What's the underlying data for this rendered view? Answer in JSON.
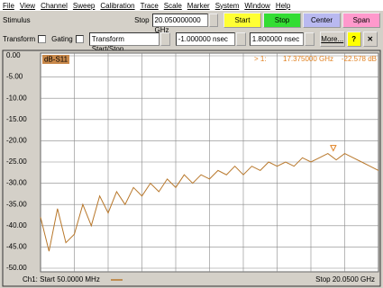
{
  "menu": [
    "File",
    "View",
    "Channel",
    "Sweep",
    "Calibration",
    "Trace",
    "Scale",
    "Marker",
    "System",
    "Window",
    "Help"
  ],
  "stimulus": {
    "label": "Stimulus",
    "stop_label": "Stop",
    "stop_value": "20.050000000 GHz",
    "buttons": [
      "Start",
      "Stop",
      "Center",
      "Span"
    ]
  },
  "transform": {
    "transform": "Transform",
    "gating": "Gating",
    "mode": "Transform Start/Stop",
    "start": "-1.000000 nsec",
    "stop": "1.800000 nsec",
    "more": "More..."
  },
  "plot": {
    "trace_label": "dB-S11",
    "marker": {
      "label": "> 1:",
      "x_label": "17.375000 GHz",
      "y_label": "-22.578 dB",
      "x": 17.375,
      "y": -22.578
    },
    "ylim": [
      -50,
      0
    ],
    "yticks": [
      {
        "value": 0,
        "label": "0.00"
      },
      {
        "value": -5,
        "label": "-5.00"
      },
      {
        "value": -10,
        "label": "-10.00"
      },
      {
        "value": -15,
        "label": "-15.00"
      },
      {
        "value": -20,
        "label": "-20.00"
      },
      {
        "value": -25,
        "label": "-25.00"
      },
      {
        "value": -30,
        "label": "-30.00"
      },
      {
        "value": -35,
        "label": "-35.00"
      },
      {
        "value": -40,
        "label": "-40.00"
      },
      {
        "value": -45,
        "label": "-45.00"
      },
      {
        "value": -50,
        "label": "-50.00"
      }
    ],
    "xlim": [
      0.05,
      20.05
    ],
    "x": [
      0.05,
      0.55,
      1.05,
      1.55,
      2.05,
      2.55,
      3.05,
      3.55,
      4.05,
      4.55,
      5.05,
      5.55,
      6.05,
      6.55,
      7.05,
      7.55,
      8.05,
      8.55,
      9.05,
      9.55,
      10.05,
      10.55,
      11.05,
      11.55,
      12.05,
      12.55,
      13.05,
      13.55,
      14.05,
      14.55,
      15.05,
      15.55,
      16.05,
      16.55,
      17.05,
      17.55,
      18.05,
      18.55,
      19.05,
      19.55,
      20.05
    ],
    "values": [
      -38,
      -46,
      -36,
      -44,
      -42,
      -35,
      -40,
      -33,
      -37,
      -32,
      -35,
      -31,
      -33,
      -30,
      -32,
      -29,
      -31,
      -28,
      -30,
      -28,
      -29,
      -27,
      -28,
      -26,
      -28,
      -26,
      -27,
      -25,
      -26,
      -25,
      -26,
      -24,
      -25,
      -24,
      -23,
      -24.5,
      -23,
      -24,
      -25,
      -26,
      -27
    ],
    "color": "#b8772a",
    "start_label": "Ch1: Start 50.0000 MHz",
    "stop_label": "Stop 20.0500 GHz"
  }
}
